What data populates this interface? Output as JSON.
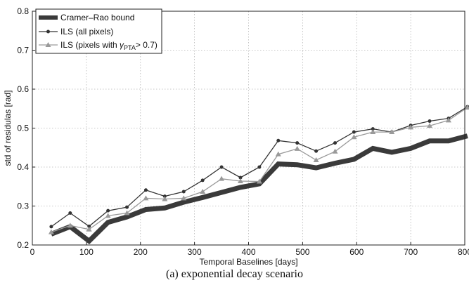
{
  "chart_data": {
    "type": "line",
    "title": "",
    "xlabel": "Temporal Baselines [days]",
    "ylabel": "std of residulas [rad]",
    "xlim": [
      0,
      800
    ],
    "ylim": [
      0.2,
      0.8
    ],
    "xticks": [
      0,
      100,
      200,
      300,
      400,
      500,
      600,
      700,
      800
    ],
    "yticks": [
      0.2,
      0.3,
      0.4,
      0.5,
      0.6,
      0.7,
      0.8
    ],
    "grid": true,
    "legend": "top-left",
    "x": [
      35,
      70,
      105,
      140,
      175,
      210,
      245,
      280,
      315,
      350,
      385,
      420,
      455,
      490,
      525,
      560,
      595,
      630,
      665,
      700,
      735,
      770,
      805
    ],
    "series": [
      {
        "name": "Cramer–Rao bound",
        "color": "#3a3a3a",
        "style": "thick",
        "values": [
          0.228,
          0.247,
          0.21,
          0.258,
          0.272,
          0.291,
          0.295,
          0.31,
          0.322,
          0.335,
          0.348,
          0.357,
          0.408,
          0.406,
          0.398,
          0.41,
          0.42,
          0.448,
          0.438,
          0.448,
          0.467,
          0.467,
          0.48
        ]
      },
      {
        "name": "ILS (all pixels)",
        "color": "#333333",
        "marker": "circle",
        "values": [
          0.247,
          0.282,
          0.248,
          0.288,
          0.297,
          0.341,
          0.325,
          0.337,
          0.366,
          0.4,
          0.373,
          0.4,
          0.468,
          0.462,
          0.441,
          0.462,
          0.49,
          0.498,
          0.49,
          0.507,
          0.518,
          0.525,
          0.555
        ]
      },
      {
        "name": "ILS (pixels with γPTA > 0.7)",
        "color": "#9a9a9a",
        "marker": "triangle",
        "values": [
          0.233,
          0.25,
          0.24,
          0.275,
          0.282,
          0.32,
          0.318,
          0.32,
          0.337,
          0.37,
          0.364,
          0.363,
          0.433,
          0.447,
          0.418,
          0.44,
          0.477,
          0.49,
          0.49,
          0.502,
          0.506,
          0.52,
          0.553
        ]
      }
    ],
    "legend_labels": {
      "crb": "Cramer–Rao bound",
      "ils_all": "ILS (all pixels)",
      "ils_pta_prefix": "ILS (pixels with ",
      "gamma": "γ",
      "pta_sub": "PTA",
      "ils_pta_suffix": "> 0.7)"
    }
  },
  "caption": "(a)  exponential  decay  scenario"
}
